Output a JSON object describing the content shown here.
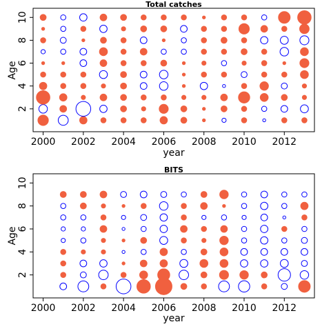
{
  "colors": {
    "positive": "#f0603f",
    "negative": "#0000ff"
  },
  "chart_data": [
    {
      "type": "scatter",
      "title": "Total catches",
      "xlabel": "year",
      "ylabel": "Age",
      "xlim": [
        1999.5,
        2013.5
      ],
      "ylim": [
        0,
        10.8
      ],
      "xticks": [
        "2000",
        "2002",
        "2004",
        "2006",
        "2008",
        "2010",
        "2012"
      ],
      "yticks": [
        "2",
        "4",
        "6",
        "8",
        "10"
      ],
      "ages": [
        1,
        2,
        3,
        4,
        5,
        6,
        7,
        8,
        9,
        10
      ],
      "years": [
        2000,
        2001,
        2002,
        2003,
        2004,
        2005,
        2006,
        2007,
        2008,
        2009,
        2010,
        2011,
        2012,
        2013
      ],
      "residuals": [
        [
          1.2,
          -1.1,
          0.6,
          0.3,
          0.3,
          0.3,
          0.6,
          0.4,
          0.1,
          -0.2,
          0.3,
          -0.1,
          0.3,
          0.3
        ],
        [
          -0.8,
          0.5,
          -2.4,
          -0.6,
          0.4,
          0.2,
          0.9,
          0.4,
          0.1,
          0.4,
          0.3,
          -0.3,
          -0.5,
          -0.7
        ],
        [
          2.0,
          0.6,
          0.2,
          0.5,
          0.4,
          0.3,
          0.3,
          0.2,
          0.2,
          0.5,
          1.4,
          0.7,
          0.4,
          0.2
        ],
        [
          0.6,
          0.3,
          0.3,
          0.2,
          0.4,
          -0.5,
          -0.8,
          0.1,
          -0.6,
          -0.1,
          0.3,
          0.8,
          -0.4,
          0.2
        ],
        [
          0.3,
          0.3,
          0.3,
          -0.7,
          0.4,
          -0.5,
          -0.8,
          0.1,
          0.3,
          0.3,
          -0.4,
          0.3,
          0.3,
          0.7
        ],
        [
          0.1,
          0.1,
          -0.5,
          0.5,
          0.3,
          0.3,
          0.4,
          0.1,
          0.2,
          -0.3,
          0.2,
          0.3,
          0.1,
          0.9
        ],
        [
          -0.2,
          -0.3,
          -0.5,
          0.7,
          0.3,
          0.5,
          -0.3,
          -0.3,
          0.3,
          0.3,
          0.4,
          0.3,
          -0.8,
          0.7
        ],
        [
          0.3,
          -0.4,
          0.1,
          0.4,
          0.3,
          -0.5,
          0.1,
          -0.3,
          0.3,
          0.4,
          0.3,
          -0.6,
          -0.7,
          -0.9
        ],
        [
          0.1,
          -0.3,
          0.3,
          -0.6,
          0.2,
          0.4,
          0.4,
          -0.5,
          0.3,
          0.3,
          1.2,
          0.5,
          0.3,
          1.0
        ],
        [
          0.4,
          -0.3,
          -0.6,
          0.5,
          0.4,
          0.3,
          0.3,
          0.3,
          0.1,
          0.3,
          0.3,
          -0.3,
          1.5,
          2.0
        ]
      ]
    },
    {
      "type": "scatter",
      "title": "BITS",
      "xlabel": "year",
      "ylabel": "Age",
      "xlim": [
        1999.5,
        2013.5
      ],
      "ylim": [
        0,
        10.8
      ],
      "xticks": [
        "2000",
        "2002",
        "2004",
        "2006",
        "2008",
        "2010",
        "2012"
      ],
      "yticks": [
        "2",
        "4",
        "6",
        "8",
        "10"
      ],
      "ages": [
        1,
        2,
        3,
        4,
        5,
        6,
        7,
        8,
        9
      ],
      "years": [
        2000,
        2001,
        2002,
        2003,
        2004,
        2005,
        2006,
        2007,
        2008,
        2009,
        2010,
        2011,
        2012,
        2013
      ],
      "residuals": [
        [
          0.0,
          -0.5,
          -1.3,
          0.3,
          -2.4,
          2.0,
          3.0,
          0.4,
          0.3,
          -1.3,
          -1.4,
          0.3,
          -0.4,
          1.5
        ],
        [
          0.0,
          0.3,
          -0.4,
          -1.0,
          0.3,
          0.7,
          1.6,
          -1.0,
          0.4,
          0.9,
          0.8,
          0.4,
          -1.7,
          -0.8
        ],
        [
          0.0,
          0.3,
          -0.5,
          -0.6,
          0.1,
          0.5,
          0.6,
          -0.7,
          0.7,
          0.7,
          -0.6,
          -0.6,
          -0.7,
          -0.4
        ],
        [
          0.0,
          0.3,
          0.2,
          0.2,
          -0.1,
          -0.3,
          0.6,
          -0.3,
          0.4,
          0.7,
          -0.5,
          -0.5,
          -0.5,
          -0.5
        ],
        [
          0.0,
          -0.2,
          -0.3,
          0.2,
          0.1,
          0.4,
          -0.7,
          0.3,
          0.2,
          0.8,
          -0.3,
          -0.6,
          -0.3,
          -0.4
        ],
        [
          0.0,
          -0.2,
          -0.2,
          0.5,
          -0.1,
          -0.3,
          -0.6,
          0.5,
          0.3,
          0.5,
          -0.3,
          -0.6,
          0.3,
          -0.3
        ],
        [
          0.0,
          -0.3,
          -0.3,
          0.3,
          -0.2,
          -0.4,
          -0.6,
          0.3,
          -0.2,
          -0.3,
          -0.2,
          -0.5,
          -0.1,
          0.3
        ],
        [
          0.0,
          -0.3,
          0.4,
          0.2,
          0.1,
          0.3,
          -0.8,
          0.3,
          0.5,
          0.1,
          -0.3,
          -0.6,
          -0.3,
          0.6
        ],
        [
          0.0,
          0.4,
          0.4,
          0.5,
          -0.4,
          -0.5,
          -0.4,
          -0.3,
          0.4,
          0.8,
          -0.3,
          -0.5,
          -0.3,
          -0.3
        ]
      ]
    }
  ]
}
